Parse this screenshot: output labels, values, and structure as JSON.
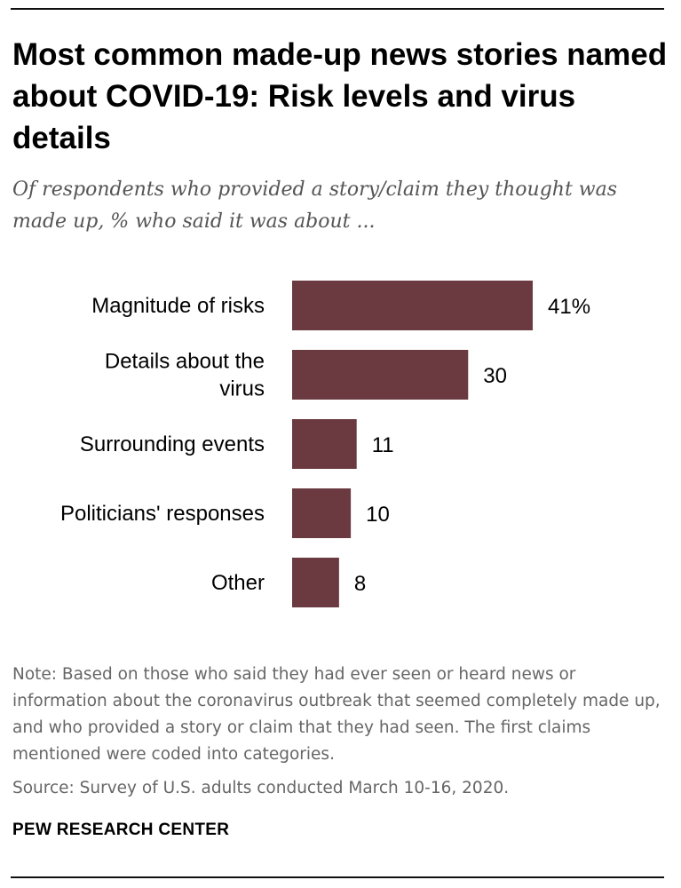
{
  "header": {
    "title": "Most common made-up news stories named about COVID-19: Risk levels and virus details",
    "subtitle": "Of respondents who provided a story/claim they thought was made up, % who said it was about ..."
  },
  "chart_data": {
    "type": "bar",
    "orientation": "horizontal",
    "categories": [
      [
        "Magnitude of risks"
      ],
      [
        "Details about the",
        "virus"
      ],
      [
        "Surrounding events"
      ],
      [
        "Politicians' responses"
      ],
      [
        "Other"
      ]
    ],
    "values": [
      41,
      30,
      11,
      10,
      8
    ],
    "value_labels": [
      "41%",
      "30",
      "11",
      "10",
      "8"
    ],
    "bar_color": "#6b3a41",
    "xlim": [
      0,
      41
    ],
    "grid": false,
    "legend": "none"
  },
  "footer": {
    "note": "Note: Based on those who said they had ever seen or heard news or information about the coronavirus outbreak that seemed completely made up, and who provided a story or claim that they had seen. The first claims mentioned were coded into categories.",
    "source": "Source: Survey of U.S. adults conducted March 10-16, 2020.",
    "brand": "PEW RESEARCH CENTER"
  }
}
